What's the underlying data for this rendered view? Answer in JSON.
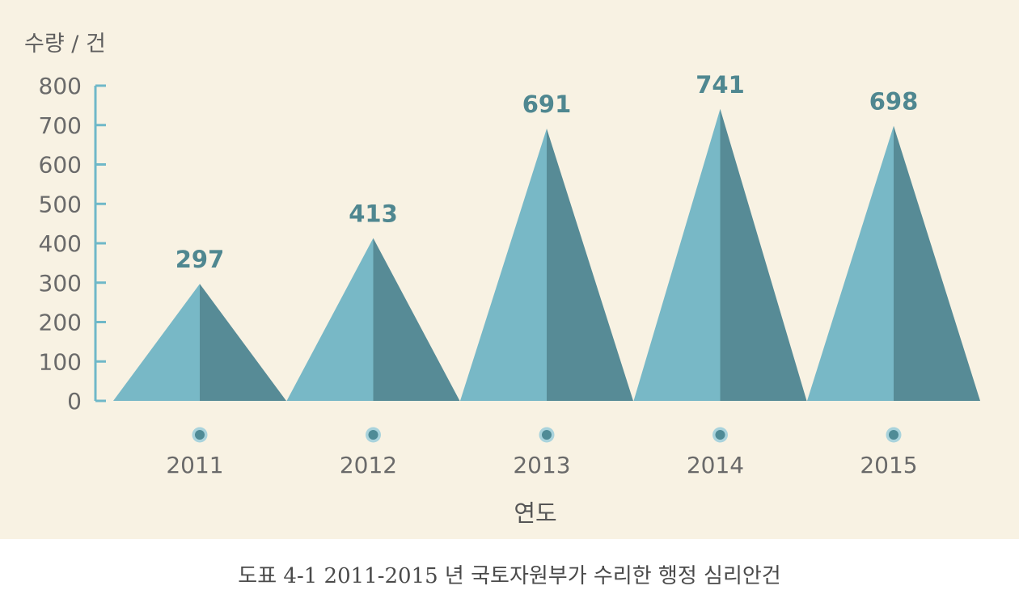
{
  "caption": "도표 4-1 2011-2015 년 국토자원부가 수리한 행정 심리안건",
  "chart_data": {
    "type": "bar",
    "categories": [
      "2011",
      "2012",
      "2013",
      "2014",
      "2015"
    ],
    "values": [
      297,
      413,
      691,
      741,
      698
    ],
    "value_labels": [
      "297",
      "413",
      "691",
      "741",
      "698"
    ],
    "ylabel": "수량 / 건",
    "xlabel": "연도",
    "ylim": [
      0,
      800
    ],
    "yticks": [
      "0",
      "100",
      "200",
      "300",
      "400",
      "500",
      "600",
      "700",
      "800"
    ],
    "grid": false,
    "legend": "none",
    "colors": {
      "background": "#f8f2e3",
      "light": "#78b8c6",
      "dark": "#578b96",
      "axis": "#6fb8c8",
      "value_label": "#4f8790",
      "marker_fill": "#4f8b96",
      "marker_ring": "#a9d3dc"
    }
  }
}
